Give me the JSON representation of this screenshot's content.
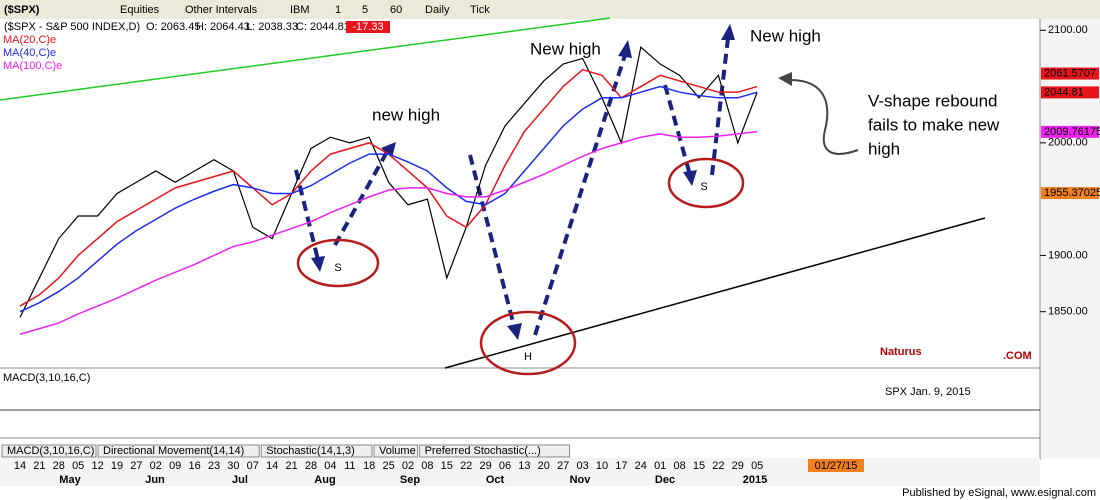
{
  "toolbar": {
    "symbol": "($SPX)",
    "items": [
      "Equities",
      "Other Intervals",
      "IBM",
      "1",
      "5",
      "60",
      "Daily",
      "Tick"
    ]
  },
  "header": {
    "open": "O: 2063.45",
    "high": "H: 2064.43",
    "low": "L: 2038.33",
    "close": "C: 2044.81",
    "change": "-17.33"
  },
  "chart_data": {
    "type": "line",
    "categories": [
      "14",
      "21",
      "28",
      "05",
      "12",
      "19",
      "27",
      "02",
      "09",
      "16",
      "23",
      "30",
      "07",
      "14",
      "21",
      "28",
      "04",
      "11",
      "18",
      "25",
      "02",
      "08",
      "15",
      "22",
      "29",
      "06",
      "13",
      "20",
      "27",
      "03",
      "10",
      "17",
      "24",
      "01",
      "08",
      "15",
      "22",
      "29",
      "05"
    ],
    "months": [
      "May",
      "Jun",
      "Jul",
      "Aug",
      "Sep",
      "Oct",
      "Nov",
      "Dec",
      "2015"
    ],
    "series": [
      {
        "name": "($SPX - S&P 500 INDEX,D)",
        "color": "#000000",
        "values": [
          1845,
          1880,
          1915,
          1935,
          1935,
          1955,
          1965,
          1975,
          1965,
          1975,
          1985,
          1975,
          1925,
          1915,
          1955,
          1995,
          2005,
          2000,
          2005,
          1965,
          1945,
          1950,
          1880,
          1925,
          1980,
          2015,
          2035,
          2055,
          2070,
          2075,
          2040,
          2000,
          2085,
          2070,
          2060,
          2040,
          2060,
          2000,
          2045
        ]
      },
      {
        "name": "MA(20,C)e",
        "color": "#e8141b",
        "values": [
          1855,
          1865,
          1880,
          1900,
          1915,
          1930,
          1940,
          1950,
          1960,
          1965,
          1970,
          1975,
          1960,
          1945,
          1955,
          1975,
          1990,
          1995,
          2000,
          1990,
          1975,
          1960,
          1935,
          1925,
          1945,
          1980,
          2010,
          2030,
          2050,
          2065,
          2060,
          2040,
          2050,
          2060,
          2055,
          2050,
          2045,
          2045,
          2050
        ]
      },
      {
        "name": "MA(40,C)e",
        "color": "#1c2cf0",
        "values": [
          1850,
          1858,
          1868,
          1880,
          1895,
          1910,
          1922,
          1932,
          1942,
          1950,
          1957,
          1963,
          1960,
          1955,
          1955,
          1962,
          1972,
          1982,
          1990,
          1990,
          1983,
          1975,
          1960,
          1948,
          1945,
          1955,
          1975,
          1995,
          2015,
          2030,
          2040,
          2040,
          2045,
          2050,
          2045,
          2042,
          2040,
          2040,
          2045
        ]
      },
      {
        "name": "MA(100,C)e",
        "color": "#ee22ee",
        "values": [
          1830,
          1835,
          1840,
          1848,
          1855,
          1862,
          1870,
          1878,
          1885,
          1892,
          1900,
          1908,
          1912,
          1918,
          1924,
          1930,
          1938,
          1945,
          1952,
          1958,
          1960,
          1960,
          1955,
          1952,
          1952,
          1958,
          1965,
          1972,
          1980,
          1988,
          1995,
          2000,
          2005,
          2008,
          2005,
          2005,
          2006,
          2008,
          2010
        ]
      }
    ],
    "ylim": [
      1800,
      2118
    ],
    "yticks": [
      {
        "value": 1850,
        "label": "1850.00"
      },
      {
        "value": 1900,
        "label": "1900.00"
      },
      {
        "value": 2000,
        "label": "2000.00"
      },
      {
        "value": 2100,
        "label": "2100.00"
      }
    ],
    "price_labels": [
      {
        "value": 2061.57,
        "label": "2061.5707",
        "color": "#e8141b"
      },
      {
        "value": 2044.81,
        "label": "2044.81",
        "color": "#e8141b"
      },
      {
        "value": 2009.76,
        "label": "2009.76175",
        "color": "#ee22ee"
      },
      {
        "value": 1955.37,
        "label": "1955.37025",
        "color": "#f08020"
      }
    ],
    "annotations": [
      "new high",
      "New high",
      "New high",
      "V-shape rebound",
      "fails to make new",
      "high",
      "S",
      "H",
      "S"
    ],
    "brand": "Naturus",
    "brand_suffix": ".COM",
    "caption": "SPX Jan. 9, 2015",
    "indicator": "MACD(3,10,16,C)",
    "tabs": [
      "MACD(3,10,16,C)",
      "Directional Movement(14,14)",
      "Stochastic(14,1,3)",
      "Volume",
      "Preferred Stochastic(...)"
    ],
    "date_box": "01/27/15",
    "footer": "Published by eSignal, www.esignal.com"
  }
}
